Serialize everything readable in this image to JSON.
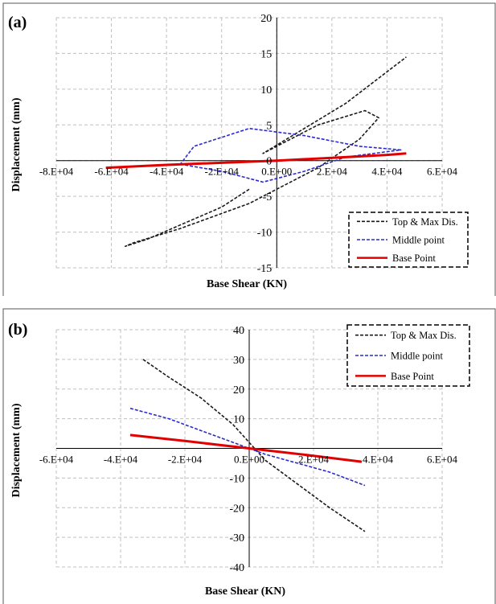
{
  "colors": {
    "top": "#1a1a1a",
    "middle": "#2a2ad0",
    "base": "#e00000",
    "grid": "#c0c0c0"
  },
  "chart_data": [
    {
      "type": "line",
      "panel_label": "(a)",
      "xlabel": "Base Shear (KN)",
      "ylabel": "Displacement (mm)",
      "xlim": [
        -80000,
        60000
      ],
      "ylim": [
        -15,
        20
      ],
      "x_ticks": [
        -80000,
        -60000,
        -40000,
        -20000,
        0,
        20000,
        40000,
        60000
      ],
      "x_tick_labels": [
        "-8.E+04",
        "-6.E+04",
        "-4.E+04",
        "-2.E+04",
        "0.E+00",
        "2.E+04",
        "4.E+04",
        "6.E+04"
      ],
      "y_ticks": [
        -15,
        -10,
        -5,
        0,
        5,
        10,
        15,
        20
      ],
      "y_tick_labels": [
        "-15",
        "-10",
        "-5",
        "0",
        "5",
        "10",
        "15",
        "20"
      ],
      "grid": true,
      "legend_position": "bottom-right",
      "legend": [
        "Top & Max Dis.",
        "Middle point",
        "Base Point"
      ],
      "series": [
        {
          "name": "Top & Max Dis.",
          "style": "dashed",
          "color": "#1a1a1a",
          "x": [
            -10000,
            -20000,
            -35000,
            -47000,
            -55000,
            -52000,
            -35000,
            -10000,
            15000,
            30000,
            37000,
            32000,
            15000,
            -5000,
            25000,
            47000
          ],
          "y": [
            -4,
            -6.5,
            -9,
            -11,
            -12,
            -11.5,
            -9.5,
            -6,
            -1,
            3,
            6,
            7,
            5,
            1,
            8,
            14.5
          ]
        },
        {
          "name": "Middle point",
          "style": "dashed",
          "color": "#2a2ad0",
          "x": [
            -35000,
            -20000,
            -5000,
            10000,
            25000,
            45000,
            30000,
            10000,
            -10000,
            -30000,
            -35000
          ],
          "y": [
            -0.5,
            -1.5,
            -3,
            -1.5,
            0.5,
            1.5,
            2,
            3.5,
            4.5,
            2,
            -0.5
          ]
        },
        {
          "name": "Base Point",
          "style": "solid",
          "color": "#e00000",
          "x": [
            -62000,
            -40000,
            -20000,
            0,
            20000,
            40000,
            47000
          ],
          "y": [
            -1,
            -0.6,
            -0.3,
            0,
            0.4,
            0.8,
            1
          ]
        }
      ]
    },
    {
      "type": "line",
      "panel_label": "(b)",
      "xlabel": "Base Shear (KN)",
      "ylabel": "Displacement (mm)",
      "xlim": [
        -60000,
        60000
      ],
      "ylim": [
        -40,
        40
      ],
      "x_ticks": [
        -60000,
        -40000,
        -20000,
        0,
        20000,
        40000,
        60000
      ],
      "x_tick_labels": [
        "-6.E+04",
        "-4.E+04",
        "-2.E+04",
        "0.E+00",
        "2.E+04",
        "4.E+04",
        "6.E+04"
      ],
      "y_ticks": [
        -40,
        -30,
        -20,
        -10,
        0,
        10,
        20,
        30,
        40
      ],
      "y_tick_labels": [
        "-40",
        "-30",
        "-20",
        "-10",
        "",
        "10",
        "20",
        "30",
        "40"
      ],
      "grid": true,
      "legend_position": "top-right",
      "legend": [
        "Top & Max Dis.",
        "Middle point",
        "Base Point"
      ],
      "series": [
        {
          "name": "Top & Max Dis.",
          "style": "dashed",
          "color": "#1a1a1a",
          "x": [
            -33000,
            -25000,
            -15000,
            -5000,
            5000,
            15000,
            25000,
            36000
          ],
          "y": [
            30,
            24,
            17,
            8,
            -4,
            -12,
            -20,
            -28
          ]
        },
        {
          "name": "Middle point",
          "style": "dashed",
          "color": "#2a2ad0",
          "x": [
            -37000,
            -25000,
            -15000,
            -5000,
            5000,
            15000,
            25000,
            36000
          ],
          "y": [
            13.5,
            10,
            6,
            2,
            -2,
            -5,
            -8,
            -12.5
          ]
        },
        {
          "name": "Base Point",
          "style": "solid",
          "color": "#e00000",
          "x": [
            -37000,
            -20000,
            0,
            20000,
            35000
          ],
          "y": [
            4.5,
            2.5,
            0,
            -2.5,
            -4.5
          ]
        }
      ]
    }
  ]
}
